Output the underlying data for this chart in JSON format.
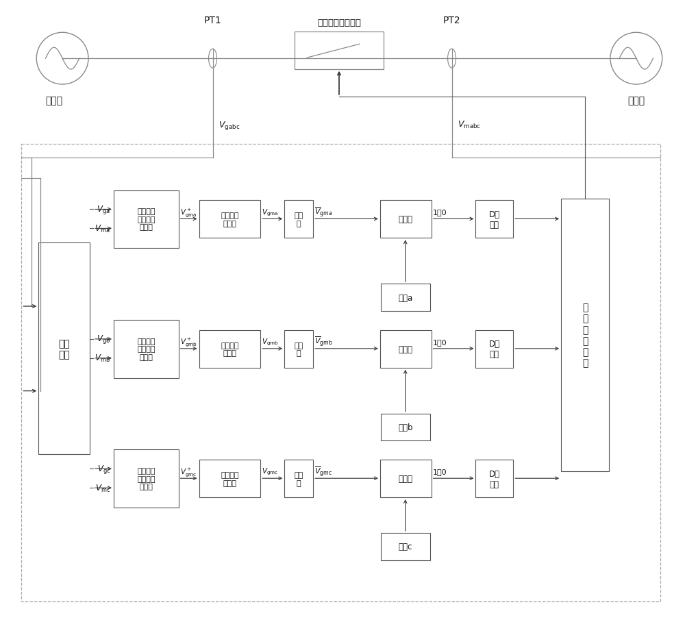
{
  "bg_color": "#ffffff",
  "line_color": "#555555",
  "box_edge": "#555555",
  "text_color": "#111111",
  "main_grid_label": "主电网",
  "micro_grid_label": "微电网",
  "pt1_label": "PT1",
  "pt2_label": "PT2",
  "switch_label": "快速静态并网开关",
  "vgabc_label": "$V_{\\rm gabc}$",
  "vmabc_label": "$V_{\\rm mabc}$",
  "cond_circuit_label": "调理\n电路",
  "or_logic_label": "或\n非\n逻\n辑\n运\n算",
  "threshold_a": "阈值a",
  "threshold_b": "阈值b",
  "threshold_c": "阈值c",
  "diff_text": "一阶抗混\n叠滤波差\n分运算",
  "lp_text": "一阶低通\n滤波器",
  "det_text": "检波\n器",
  "cmp_text": "比较器",
  "dff_text": "D触\n发器",
  "one_or_zero": "1或0"
}
